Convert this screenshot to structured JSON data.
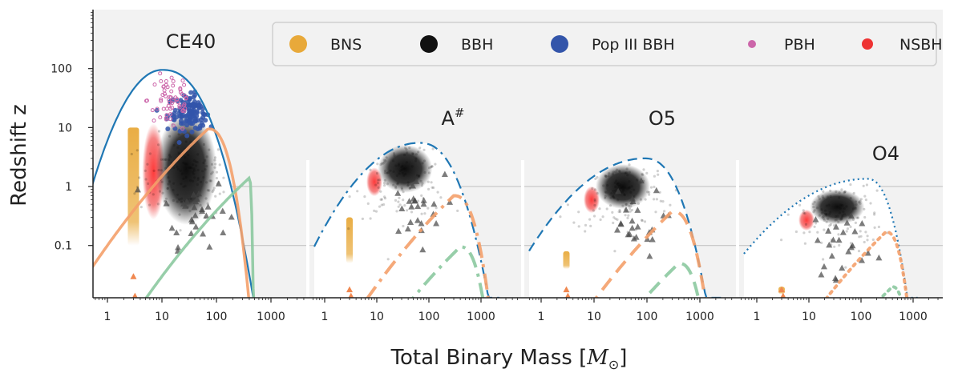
{
  "chart_data": {
    "type": "scatter",
    "ylabel": "Redshift z",
    "xlabel_prefix": "Total Binary Mass [",
    "xlabel_symbol": "M",
    "xlabel_suffix": "]",
    "y_scale": "log",
    "x_scale": "log",
    "ylim": [
      0.013,
      1000
    ],
    "xlim": [
      0.5,
      5000
    ],
    "y_ticks": [
      {
        "v": 100,
        "label": "100"
      },
      {
        "v": 10,
        "label": "10"
      },
      {
        "v": 1,
        "label": "1"
      },
      {
        "v": 0.1,
        "label": "0.1"
      }
    ],
    "x_ticks": [
      {
        "v": 1,
        "label": "1"
      },
      {
        "v": 10,
        "label": "10"
      },
      {
        "v": 100,
        "label": "100"
      },
      {
        "v": 1000,
        "label": "1000"
      }
    ],
    "grid": "horizontal",
    "background": "#f2f2f2",
    "legend": {
      "placement": "top",
      "entries": [
        {
          "label": "BNS",
          "color": "#e8a93a"
        },
        {
          "label": "BBH",
          "color": "#111111"
        },
        {
          "label": "Pop III BBH",
          "color": "#3355aa"
        },
        {
          "label": "PBH",
          "color": "#cc66aa"
        },
        {
          "label": "NSBH",
          "color": "#ee3333"
        }
      ]
    },
    "panels": [
      {
        "title": "CE40",
        "horizon_peak": {
          "m": 10,
          "z": 95
        },
        "curve_styles": "solid",
        "horizon_color": "#1f77b4",
        "orange_peak": {
          "m": 70,
          "z": 9.5
        },
        "green_peak": {
          "m": 400,
          "z": 1.4
        },
        "right_cutoff": 500
      },
      {
        "title": "A#",
        "horizon_peak": {
          "m": 65,
          "z": 5.5
        },
        "curve_styles": "dashdot",
        "horizon_color": "#1f77b4",
        "orange_peak": {
          "m": 300,
          "z": 0.7
        },
        "green_peak": {
          "m": 400,
          "z": 0.095
        },
        "right_cutoff": 2500
      },
      {
        "title": "O5",
        "horizon_peak": {
          "m": 90,
          "z": 3.0
        },
        "curve_styles": "dashed",
        "horizon_color": "#1f77b4",
        "orange_peak": {
          "m": 300,
          "z": 0.38
        },
        "green_peak": {
          "m": 400,
          "z": 0.05
        },
        "right_cutoff": 2500
      },
      {
        "title": "O4",
        "horizon_peak": {
          "m": 130,
          "z": 1.35
        },
        "curve_styles": "dotted",
        "horizon_color": "#1f77b4",
        "orange_peak": {
          "m": 300,
          "z": 0.17
        },
        "green_peak": {
          "m": 400,
          "z": 0.02
        },
        "right_cutoff": 1400
      }
    ]
  }
}
